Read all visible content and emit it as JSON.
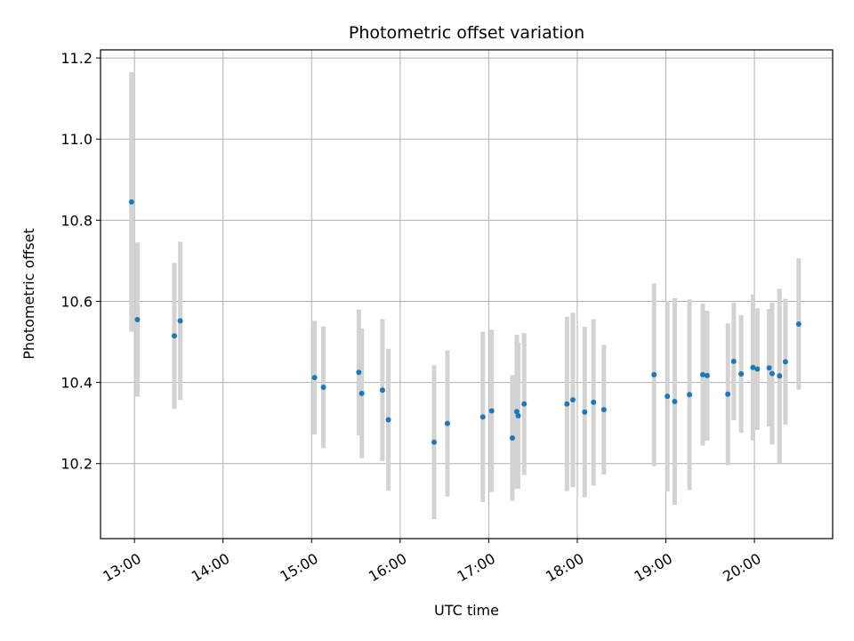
{
  "chart_data": {
    "type": "scatter",
    "title": "Photometric offset variation",
    "xlabel": "UTC time",
    "ylabel": "Photometric offset",
    "xlim": [
      "12:37",
      "20:53"
    ],
    "ylim": [
      10.015,
      11.22
    ],
    "x_ticks": [
      "13:00",
      "14:00",
      "15:00",
      "16:00",
      "17:00",
      "18:00",
      "19:00",
      "20:00"
    ],
    "y_ticks": [
      "10.2",
      "10.4",
      "10.6",
      "10.8",
      "11.0",
      "11.2"
    ],
    "grid": true,
    "legend": "none",
    "colors": {
      "points": "#1f77b4",
      "errorbars": "#d3d3d3",
      "grid": "#b0b0b0"
    },
    "series": [
      {
        "points": [
          {
            "x": "12:58",
            "y": 10.845,
            "yerr": 0.32
          },
          {
            "x": "13:02",
            "y": 10.555,
            "yerr": 0.19
          },
          {
            "x": "13:27",
            "y": 10.515,
            "yerr": 0.18
          },
          {
            "x": "13:31",
            "y": 10.552,
            "yerr": 0.195
          },
          {
            "x": "15:02",
            "y": 10.412,
            "yerr": 0.14
          },
          {
            "x": "15:08",
            "y": 10.388,
            "yerr": 0.15
          },
          {
            "x": "15:32",
            "y": 10.425,
            "yerr": 0.155
          },
          {
            "x": "15:34",
            "y": 10.373,
            "yerr": 0.16
          },
          {
            "x": "15:48",
            "y": 10.381,
            "yerr": 0.175
          },
          {
            "x": "15:52",
            "y": 10.308,
            "yerr": 0.175
          },
          {
            "x": "16:23",
            "y": 10.253,
            "yerr": 0.19
          },
          {
            "x": "16:32",
            "y": 10.299,
            "yerr": 0.18
          },
          {
            "x": "16:56",
            "y": 10.315,
            "yerr": 0.21
          },
          {
            "x": "17:02",
            "y": 10.33,
            "yerr": 0.2
          },
          {
            "x": "17:16",
            "y": 10.263,
            "yerr": 0.155
          },
          {
            "x": "17:19",
            "y": 10.328,
            "yerr": 0.19
          },
          {
            "x": "17:20",
            "y": 10.318,
            "yerr": 0.18
          },
          {
            "x": "17:24",
            "y": 10.347,
            "yerr": 0.175
          },
          {
            "x": "17:53",
            "y": 10.347,
            "yerr": 0.215
          },
          {
            "x": "17:57",
            "y": 10.357,
            "yerr": 0.215
          },
          {
            "x": "18:05",
            "y": 10.327,
            "yerr": 0.21
          },
          {
            "x": "18:11",
            "y": 10.351,
            "yerr": 0.205
          },
          {
            "x": "18:18",
            "y": 10.333,
            "yerr": 0.16
          },
          {
            "x": "18:52",
            "y": 10.419,
            "yerr": 0.225
          },
          {
            "x": "19:01",
            "y": 10.366,
            "yerr": 0.235
          },
          {
            "x": "19:06",
            "y": 10.353,
            "yerr": 0.255
          },
          {
            "x": "19:16",
            "y": 10.37,
            "yerr": 0.235
          },
          {
            "x": "19:25",
            "y": 10.419,
            "yerr": 0.175
          },
          {
            "x": "19:28",
            "y": 10.417,
            "yerr": 0.16
          },
          {
            "x": "19:42",
            "y": 10.371,
            "yerr": 0.175
          },
          {
            "x": "19:46",
            "y": 10.452,
            "yerr": 0.145
          },
          {
            "x": "19:51",
            "y": 10.421,
            "yerr": 0.145
          },
          {
            "x": "19:59",
            "y": 10.437,
            "yerr": 0.18
          },
          {
            "x": "20:02",
            "y": 10.433,
            "yerr": 0.15
          },
          {
            "x": "20:10",
            "y": 10.436,
            "yerr": 0.145
          },
          {
            "x": "20:12",
            "y": 10.422,
            "yerr": 0.175
          },
          {
            "x": "20:17",
            "y": 10.416,
            "yerr": 0.215
          },
          {
            "x": "20:21",
            "y": 10.451,
            "yerr": 0.155
          },
          {
            "x": "20:30",
            "y": 10.544,
            "yerr": 0.162
          }
        ]
      }
    ]
  }
}
